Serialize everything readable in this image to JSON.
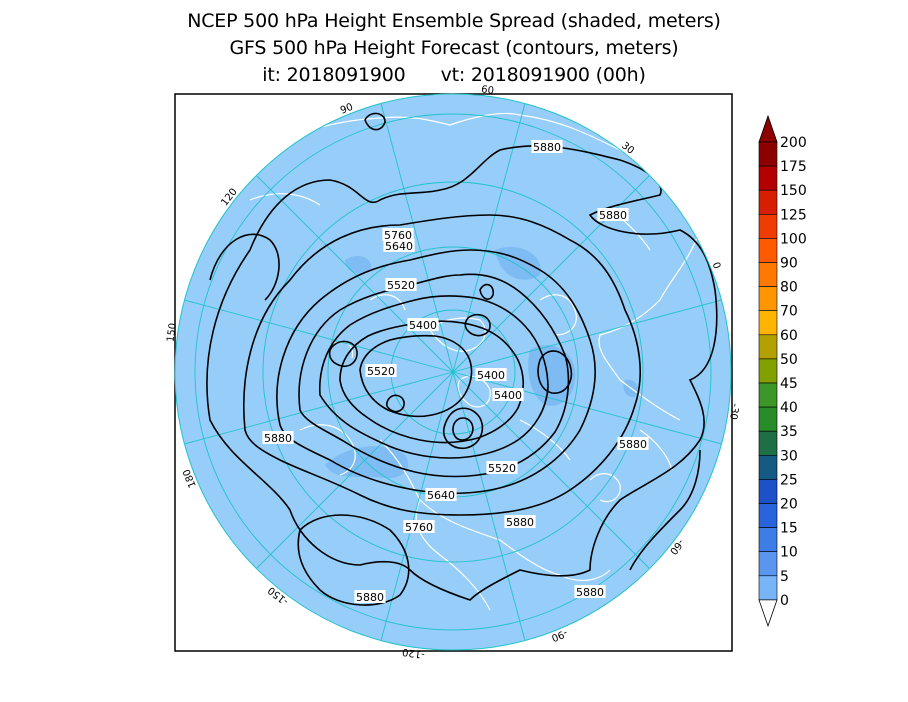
{
  "title": {
    "line1": "NCEP 500 hPa Height Ensemble Spread (shaded, meters)",
    "line2": "GFS 500 hPa Height Forecast (contours, meters)",
    "line3": "it: 2018091900      vt: 2018091900 (00h)"
  },
  "map": {
    "projection": "north polar stereographic",
    "background_spread_color": "#96cdf9",
    "frame_color": "#000000",
    "grid_color": "#22c3c9",
    "coastline_color": "#ffffff",
    "contour_color": "#000000",
    "longitude_labels": [
      "60",
      "30",
      "0",
      "-30",
      "-60",
      "-90",
      "-120",
      "-150",
      "180",
      "150",
      "120",
      "90"
    ],
    "contour_labels": [
      "5880",
      "5880",
      "5760",
      "5640",
      "5520",
      "5400",
      "5520",
      "5400",
      "5400",
      "5520",
      "5640",
      "5760",
      "5880",
      "5880",
      "5880",
      "5880",
      "5880"
    ]
  },
  "colorbar": {
    "labels": [
      "200",
      "175",
      "150",
      "125",
      "100",
      "90",
      "80",
      "70",
      "60",
      "50",
      "45",
      "40",
      "35",
      "30",
      "25",
      "20",
      "15",
      "10",
      "5",
      "0"
    ],
    "colors": [
      "#8c0000",
      "#b40000",
      "#d81e00",
      "#f03c00",
      "#ff5a00",
      "#ff7800",
      "#ff9600",
      "#ffb400",
      "#b4a000",
      "#82a000",
      "#3c9628",
      "#288c28",
      "#1e6e46",
      "#145a82",
      "#1e50c8",
      "#2864dc",
      "#3c7ee6",
      "#5a96f0",
      "#78b4f8",
      "#96cdf9"
    ]
  }
}
